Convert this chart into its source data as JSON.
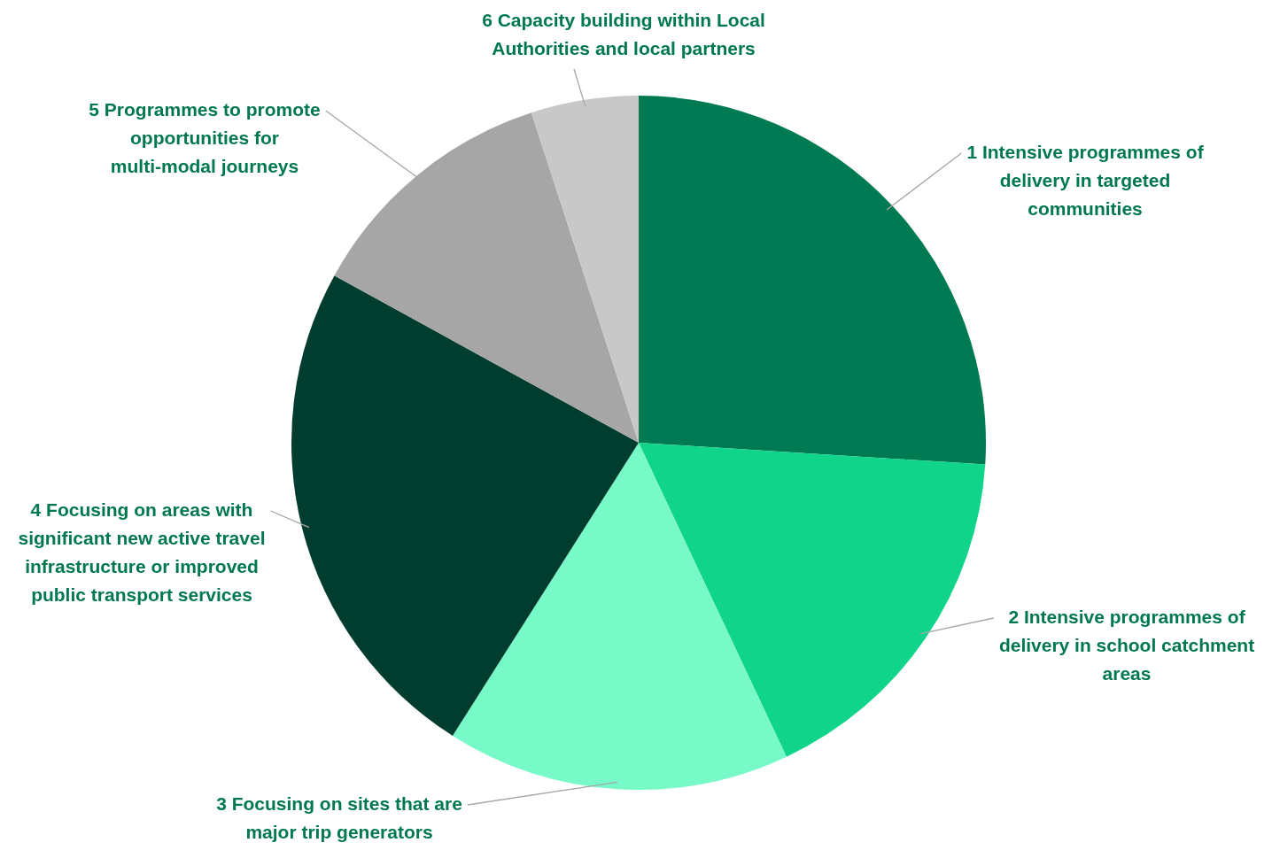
{
  "chart_data": {
    "type": "pie",
    "categories": [
      "1 Intensive programmes of delivery in targeted communities",
      "2 Intensive programmes of delivery in school catchment areas",
      "3 Focusing on sites that are major trip generators",
      "4 Focusing on areas with significant new active travel infrastructure or improved public transport services",
      "5 Programmes to promote opportunities for multi-modal journeys",
      "6 Capacity building within Local Authorities and local partners"
    ],
    "values": [
      26,
      17,
      16,
      24,
      12,
      5
    ],
    "colors": [
      "#007a53",
      "#0fd48a",
      "#78f9c8",
      "#003d2f",
      "#a6a6a6",
      "#c8c8c8"
    ],
    "legend": false
  }
}
